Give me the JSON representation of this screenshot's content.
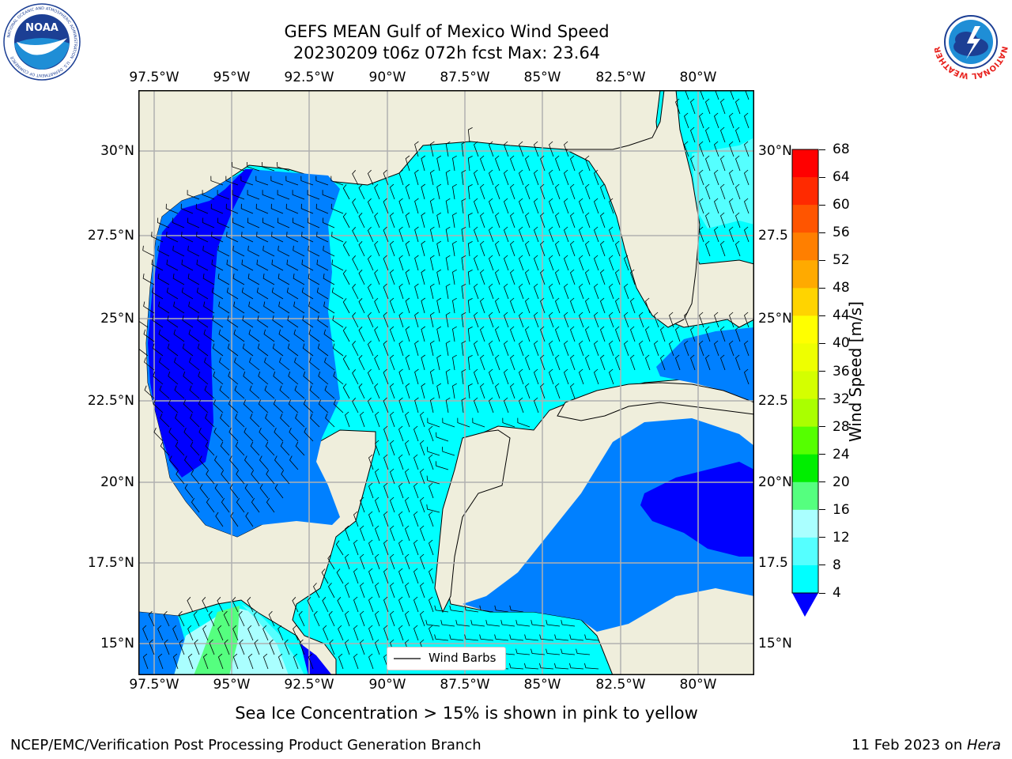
{
  "title": {
    "line1": "GEFS MEAN Gulf of Mexico Wind Speed",
    "line2": "20230209 t06z 072h fcst   Max: 23.64"
  },
  "axes": {
    "lon_labels": [
      "97.5°W",
      "95°W",
      "92.5°W",
      "90°W",
      "87.5°W",
      "85°W",
      "82.5°W",
      "80°W"
    ],
    "lat_labels_left": [
      "30°N",
      "27.5°N",
      "25°N",
      "22.5°N",
      "20°N",
      "17.5°N",
      "15°N"
    ],
    "lat_labels_right": [
      "30°N",
      "27.5",
      "25°N",
      "22.5",
      "20°N",
      "17.5",
      "15°N"
    ]
  },
  "legend": {
    "label": "Wind Barbs"
  },
  "colorbar": {
    "label": "Wind Speed [m/s]",
    "ticks": [
      "68",
      "64",
      "60",
      "56",
      "52",
      "48",
      "44",
      "40",
      "36",
      "32",
      "28",
      "24",
      "20",
      "16",
      "12",
      "8",
      "4"
    ],
    "colors": [
      "#ff0000",
      "#ff2a00",
      "#ff5500",
      "#ff7f00",
      "#ffaa00",
      "#ffd400",
      "#ffff00",
      "#eeff00",
      "#d4ff00",
      "#aaff00",
      "#55ff00",
      "#00ee00",
      "#55ff7f",
      "#aaffff",
      "#55ffff",
      "#00ffff",
      "#0080ff"
    ],
    "under_color": "#0000ff"
  },
  "map_colors": {
    "land": "#efeedc",
    "ws_4_8": "#0080ff",
    "ws_below_4": "#0000ff",
    "ws_8_12": "#00ffff",
    "ws_12_16": "#55ffff",
    "ws_16_20": "#aaffff",
    "ws_20_24": "#55ff7f"
  },
  "caption": "Sea Ice Concentration > 15% is shown in pink to yellow",
  "footer": {
    "left": "NCEP/EMC/Verification Post Processing Product Generation Branch",
    "right_prefix": "11 Feb 2023 on ",
    "right_host": "Hera"
  },
  "logos": {
    "noaa": {
      "center": "NOAA",
      "ring": "NATIONAL OCEANIC AND ATMOSPHERIC ADMINISTRATION · U.S. DEPARTMENT OF COMMERCE"
    },
    "nws": {
      "ring": "NATIONAL WEATHER SERVICE"
    }
  }
}
